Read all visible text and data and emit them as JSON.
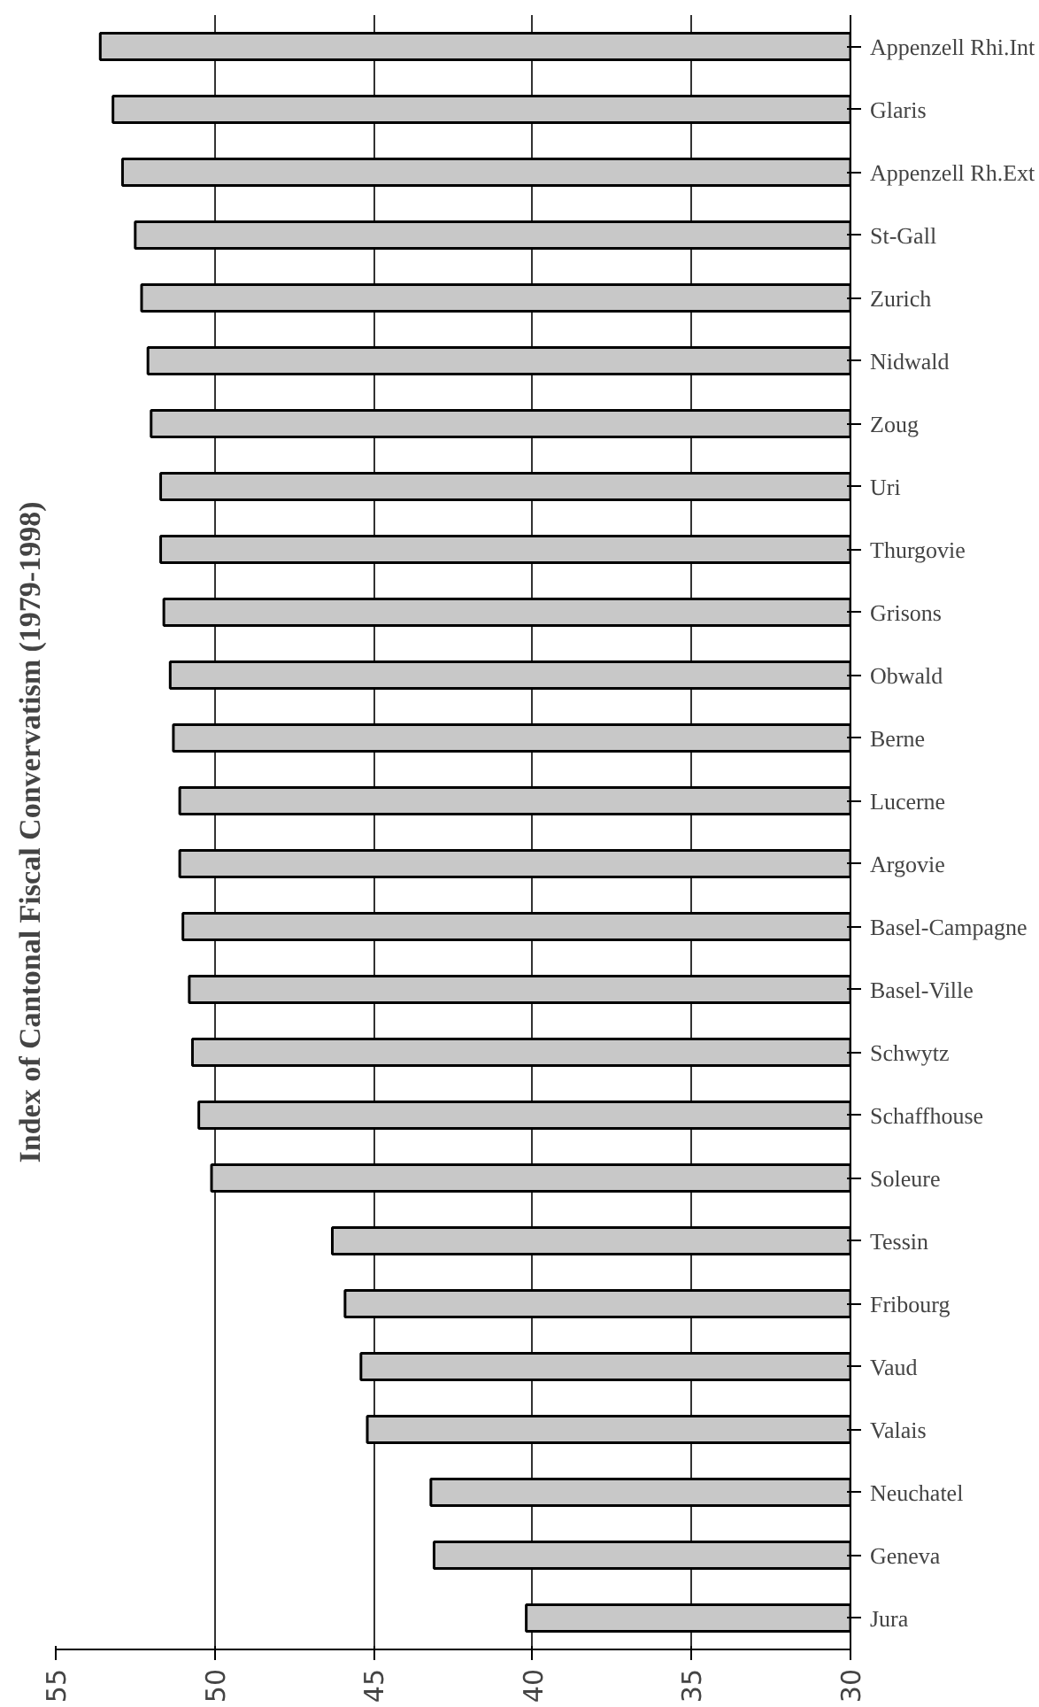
{
  "chart_data": {
    "type": "bar",
    "orientation": "horizontal",
    "title": "Index of Cantonal Fiscal Convervatism (1979-1998)",
    "categories": [
      "Appenzell Rhi.Int",
      "Glaris",
      "Appenzell Rh.Ext",
      "St-Gall",
      "Zurich",
      "Nidwald",
      "Zoug",
      "Uri",
      "Thurgovie",
      "Grisons",
      "Obwald",
      "Berne",
      "Lucerne",
      "Argovie",
      "Basel-Campagne",
      "Basel-Ville",
      "Schwytz",
      "Schaffhouse",
      "Soleure",
      "Tessin",
      "Fribourg",
      "Vaud",
      "Valais",
      "Neuchatel",
      "Geneva",
      "Jura"
    ],
    "values": [
      53.6,
      53.2,
      52.9,
      52.5,
      52.3,
      52.1,
      52.0,
      51.7,
      51.7,
      51.6,
      51.4,
      51.3,
      51.1,
      51.1,
      51.0,
      50.8,
      50.7,
      50.5,
      50.1,
      46.3,
      45.9,
      45.4,
      45.2,
      43.2,
      43.1,
      40.2
    ],
    "color": "#c8c8c8",
    "xlim": [
      55,
      30
    ],
    "xticks": [
      55,
      50,
      45,
      40,
      35,
      30
    ],
    "grid": "x"
  }
}
